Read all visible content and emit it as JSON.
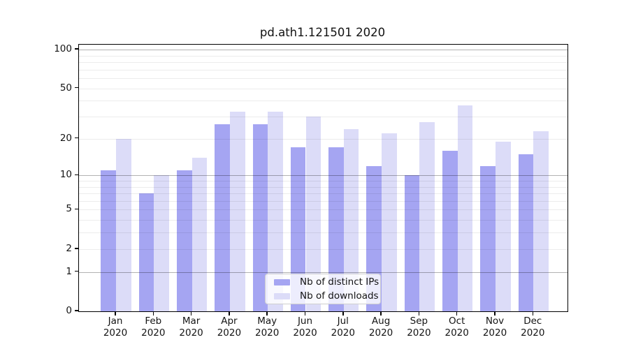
{
  "title": "pd.ath1.121501 2020",
  "chart_data": {
    "type": "bar",
    "title": "pd.ath1.121501 2020",
    "categories_month": [
      "Jan",
      "Feb",
      "Mar",
      "Apr",
      "May",
      "Jun",
      "Jul",
      "Aug",
      "Sep",
      "Oct",
      "Nov",
      "Dec"
    ],
    "categories_year": "2020",
    "series": [
      {
        "name": "Nb of distinct IPs",
        "color": "#a5a5f2",
        "values": [
          11,
          7,
          11,
          26,
          26,
          17,
          17,
          12,
          10,
          16,
          12,
          15
        ]
      },
      {
        "name": "Nb of downloads",
        "color": "#dcdcf8",
        "values": [
          20,
          10,
          14,
          33,
          33,
          30,
          24,
          22,
          27,
          37,
          19,
          23
        ]
      }
    ],
    "xlabel": "",
    "ylabel": "",
    "yscale": "log1p",
    "ylim": [
      0,
      110
    ],
    "yticks": [
      0,
      1,
      2,
      5,
      10,
      20,
      50,
      100
    ],
    "ygrid_major": [
      1,
      10,
      100
    ],
    "ygrid_minor": [
      2,
      3,
      4,
      5,
      6,
      7,
      8,
      9,
      20,
      30,
      40,
      50,
      60,
      70,
      80,
      90
    ],
    "grid": true,
    "legend_position": "lower-center"
  }
}
